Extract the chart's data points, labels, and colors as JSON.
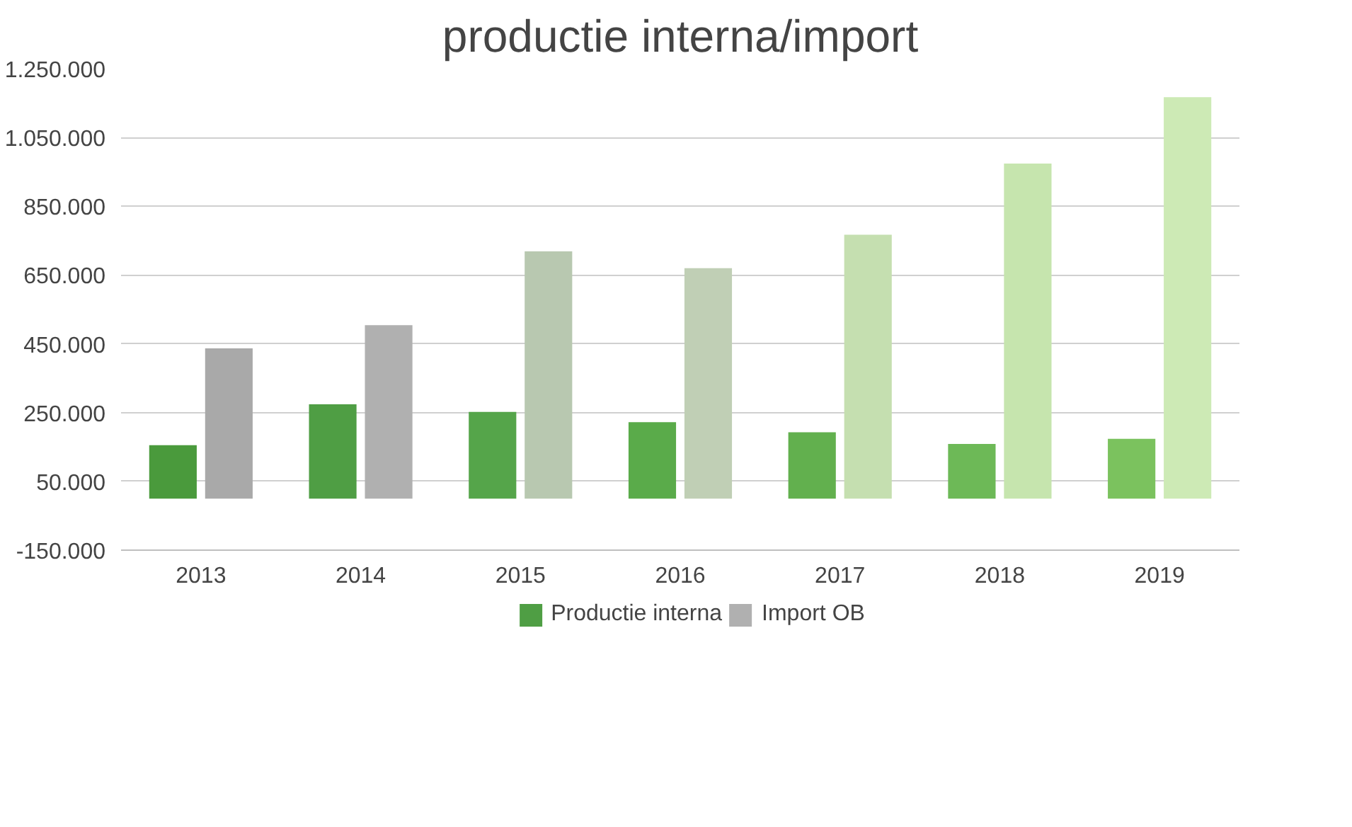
{
  "chart_data": {
    "type": "bar",
    "title": "productie interna/import",
    "categories": [
      "2013",
      "2014",
      "2015",
      "2016",
      "2017",
      "2018",
      "2019"
    ],
    "series": [
      {
        "name": "Productie interna",
        "color": "#4f9e44",
        "colors": [
          "#4a9a3c",
          "#4f9e44",
          "#55a54a",
          "#5aab4a",
          "#62b04e",
          "#6db957",
          "#7bc25e"
        ],
        "values": [
          155000,
          274000,
          252000,
          222000,
          193000,
          159000,
          174000
        ]
      },
      {
        "name": "Import OB",
        "color": "#b0b0b0",
        "colors": [
          "#a9a9a9",
          "#b0b0b0",
          "#b8c8b0",
          "#c0cfb5",
          "#c5dfb0",
          "#c6e5ae",
          "#cdeab5"
        ],
        "values": [
          437000,
          504000,
          719000,
          670000,
          767000,
          974000,
          1167000
        ]
      }
    ],
    "ylim": [
      -150000,
      1250000
    ],
    "yticks": [
      {
        "value": -150000,
        "label": "-150.000"
      },
      {
        "value": 50000,
        "label": "50.000"
      },
      {
        "value": 250000,
        "label": "250.000"
      },
      {
        "value": 450000,
        "label": "450.000"
      },
      {
        "value": 650000,
        "label": "650.000"
      },
      {
        "value": 850000,
        "label": "850.000"
      },
      {
        "value": 1050000,
        "label": "1.050.000"
      },
      {
        "value": 1250000,
        "label": "1.250.000"
      }
    ],
    "grid": "y",
    "legend": "bottom"
  }
}
